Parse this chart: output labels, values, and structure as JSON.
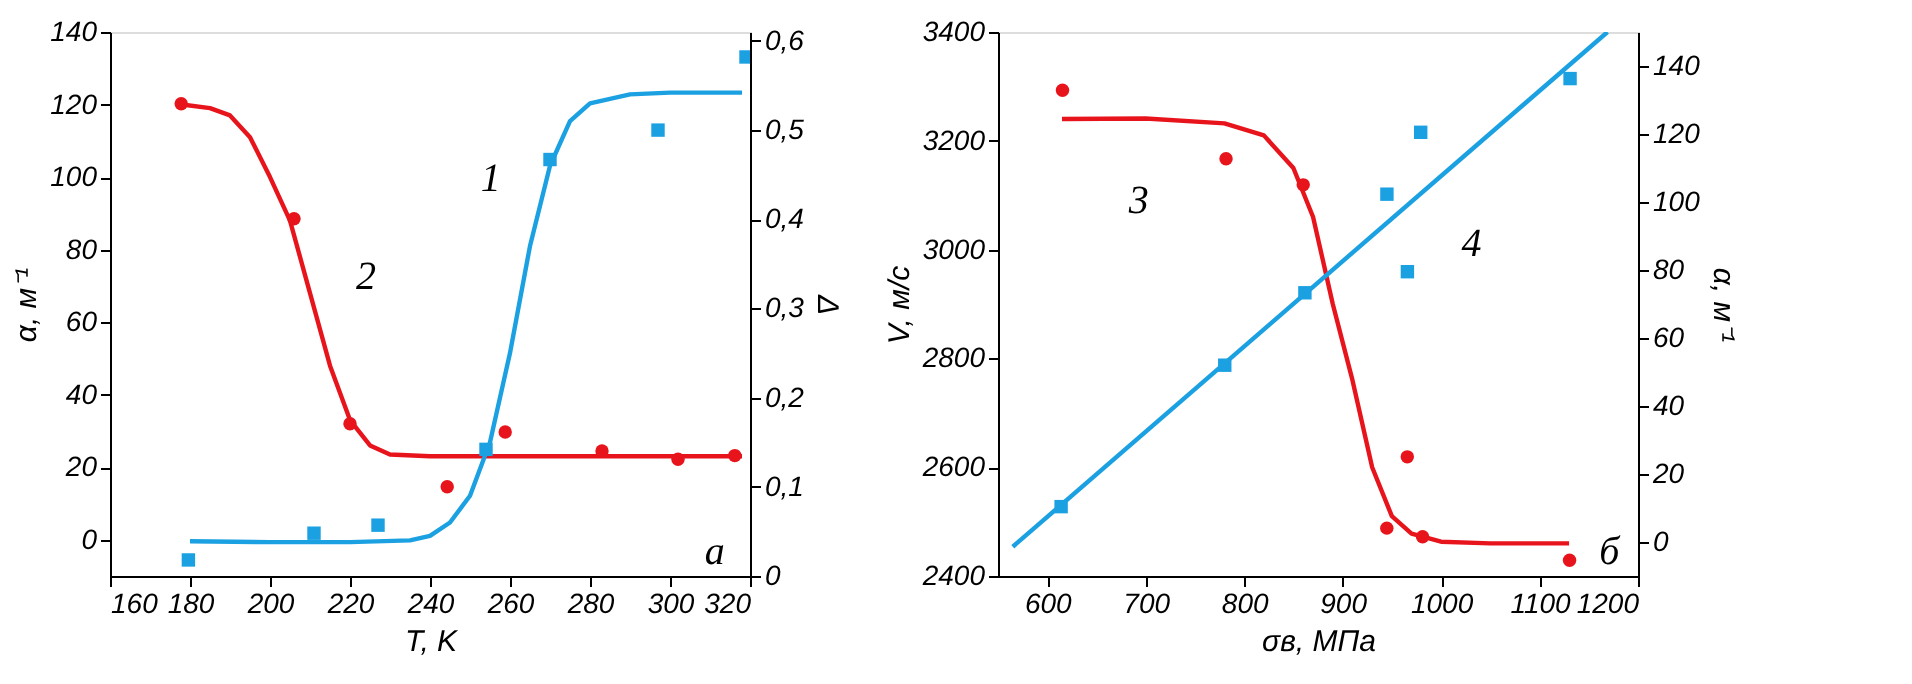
{
  "chart_data": [
    {
      "type": "line",
      "xlabel": "T, K",
      "ylabel": "α, м⁻¹",
      "y2label": "Δ",
      "xlim": [
        160,
        320
      ],
      "xticks": [
        160,
        180,
        200,
        220,
        240,
        260,
        280,
        300,
        320
      ],
      "ylim": [
        -10,
        140
      ],
      "yticks": [
        0,
        20,
        40,
        60,
        80,
        100,
        120,
        140
      ],
      "y2lim": [
        0,
        0.61
      ],
      "y2ticks": [
        {
          "value": 0,
          "label": "0"
        },
        {
          "value": 0.1,
          "label": "0,1"
        },
        {
          "value": 0.2,
          "label": "0,2"
        },
        {
          "value": 0.3,
          "label": "0,3"
        },
        {
          "value": 0.4,
          "label": "0,4"
        },
        {
          "value": 0.5,
          "label": "0,5"
        },
        {
          "value": 0.6,
          "label": "0,6"
        }
      ],
      "grid": false,
      "series": [
        {
          "type": "line",
          "color": "#e8141c",
          "marker": "none",
          "x": [
            178,
            185,
            190,
            195,
            200,
            205,
            210,
            215,
            220,
            225,
            230,
            240,
            260,
            318
          ],
          "values": [
            120,
            119,
            117,
            111,
            100,
            88,
            68,
            48,
            33,
            26,
            23.5,
            23,
            23,
            23
          ]
        },
        {
          "type": "scatter",
          "color": "#e8141c",
          "marker": "circle",
          "x": [
            177.8,
            206,
            220,
            244.3,
            258.8,
            283,
            302,
            316.2
          ],
          "values": [
            120.2,
            88.5,
            32,
            14.6,
            29.7,
            24.5,
            22.2,
            23.2
          ]
        },
        {
          "type": "line",
          "axis": "y2",
          "color": "#1ba1e2",
          "marker": "none",
          "x": [
            180,
            200,
            220,
            235,
            240,
            245,
            250,
            255,
            260,
            265,
            270,
            275,
            280,
            290,
            300,
            318
          ],
          "values": [
            0.039,
            0.038,
            0.038,
            0.04,
            0.045,
            0.06,
            0.09,
            0.15,
            0.25,
            0.37,
            0.46,
            0.51,
            0.53,
            0.54,
            0.542,
            0.542
          ]
        },
        {
          "type": "scatter",
          "axis": "y2",
          "color": "#1ba1e2",
          "marker": "square",
          "x": [
            179.6,
            211,
            227,
            254,
            270,
            297,
            319
          ],
          "values": [
            0.018,
            0.048,
            0.057,
            0.142,
            0.467,
            0.5,
            0.582
          ]
        }
      ],
      "annotations": [
        "1",
        "2",
        "а"
      ]
    },
    {
      "type": "line",
      "xlabel": "σв, МПа",
      "ylabel": "V, м/с",
      "y2label": "α, м⁻¹",
      "xlim": [
        550,
        1200
      ],
      "xticks": [
        600,
        700,
        800,
        900,
        1000,
        1100,
        1200
      ],
      "ylim": [
        2400,
        3400
      ],
      "yticks": [
        2400,
        2600,
        2800,
        3000,
        3200,
        3400
      ],
      "y2lim": [
        -10,
        150
      ],
      "y2ticks": [
        0,
        20,
        40,
        60,
        80,
        100,
        120,
        140
      ],
      "grid": false,
      "series": [
        {
          "type": "line",
          "color": "#e8141c",
          "marker": "none",
          "x": [
            615,
            700,
            780,
            820,
            850,
            870,
            890,
            910,
            930,
            950,
            970,
            1000,
            1050,
            1130
          ],
          "values": [
            3240,
            3241,
            3232,
            3210,
            3150,
            3060,
            2900,
            2760,
            2600,
            2510,
            2478,
            2463,
            2460,
            2460
          ]
        },
        {
          "type": "scatter",
          "color": "#e8141c",
          "marker": "circle",
          "x": [
            615.5,
            781.6,
            860,
            965.7,
            944.9,
            981.2,
            1130.5
          ],
          "values": [
            3293,
            3167,
            3119,
            2619,
            2488,
            2472,
            2429
          ]
        },
        {
          "type": "line",
          "axis": "y2",
          "color": "#1ba1e2",
          "marker": "none",
          "x": [
            565,
            1169
          ],
          "values": [
            -1.4,
            150
          ]
        },
        {
          "type": "scatter",
          "axis": "y2",
          "color": "#1ba1e2",
          "marker": "square",
          "x": [
            614.1,
            780.3,
            861.7,
            945,
            965.8,
            979.3,
            1131
          ],
          "values": [
            10.4,
            52,
            73.3,
            102.3,
            79.5,
            120.5,
            136.3
          ]
        }
      ],
      "annotations": [
        "3",
        "4",
        "б"
      ]
    }
  ]
}
